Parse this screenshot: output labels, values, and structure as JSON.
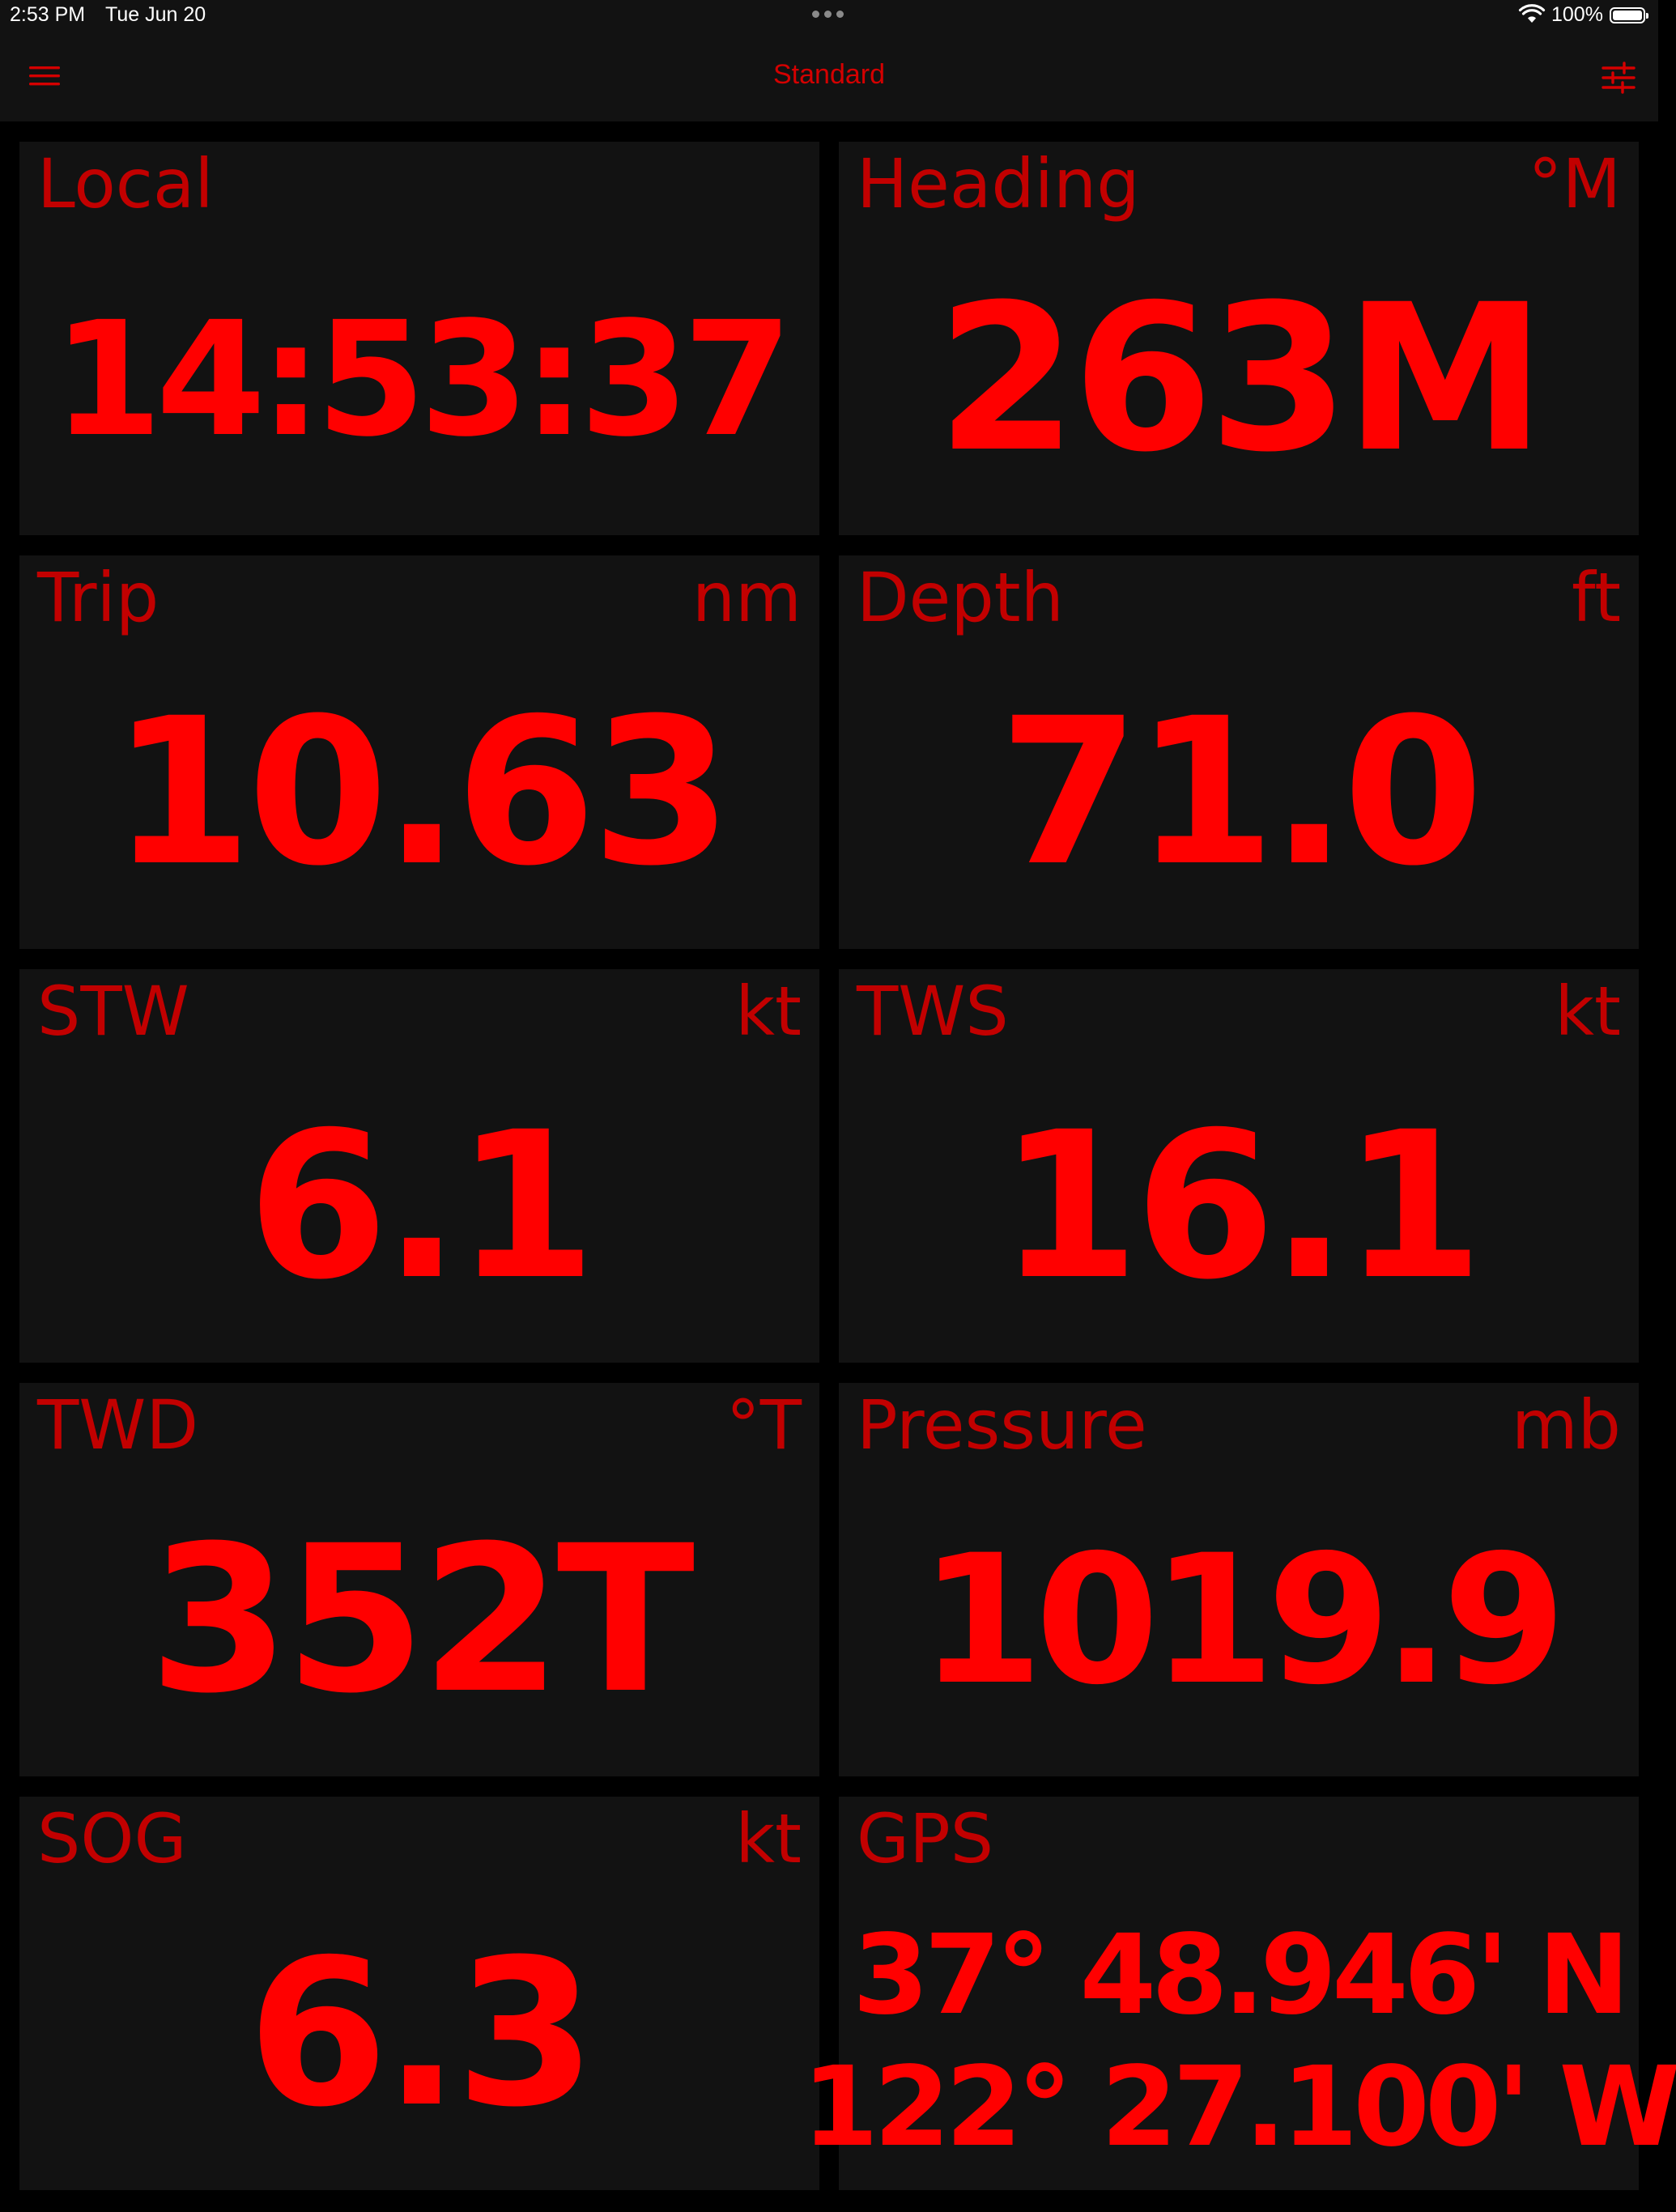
{
  "status_bar": {
    "time": "2:53 PM",
    "date": "Tue Jun 20",
    "battery": "100%"
  },
  "nav": {
    "title": "Standard",
    "left_icon": "hamburger-menu-icon",
    "right_icon": "sliders-icon"
  },
  "colors": {
    "background": "#000000",
    "tile": "#121212",
    "label": "#c20000",
    "value": "#ff0000",
    "title": "#d40000"
  },
  "tiles": {
    "local": {
      "label": "Local",
      "unit": "",
      "value": "14:53:37"
    },
    "heading": {
      "label": "Heading",
      "unit": "°M",
      "value": "263M"
    },
    "trip": {
      "label": "Trip",
      "unit": "nm",
      "value": "10.63"
    },
    "depth": {
      "label": "Depth",
      "unit": "ft",
      "value": "71.0"
    },
    "stw": {
      "label": "STW",
      "unit": "kt",
      "value": "6.1"
    },
    "tws": {
      "label": "TWS",
      "unit": "kt",
      "value": "16.1"
    },
    "twd": {
      "label": "TWD",
      "unit": "°T",
      "value": "352T"
    },
    "pressure": {
      "label": "Pressure",
      "unit": "mb",
      "value": "1019.9"
    },
    "sog": {
      "label": "SOG",
      "unit": "kt",
      "value": "6.3"
    },
    "gps": {
      "label": "GPS",
      "unit": "",
      "lat": "37° 48.946' N",
      "lon": "122° 27.100' W"
    }
  }
}
